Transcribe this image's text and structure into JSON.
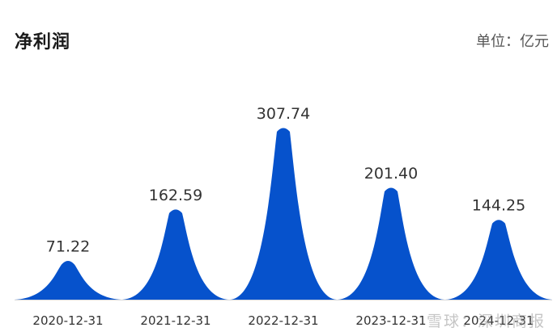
{
  "header": {
    "title": "净利润",
    "unit": "单位：亿元"
  },
  "watermark": "雪球：深圳商报",
  "colors": {
    "peak_fill": "#0652cc"
  },
  "chart_data": {
    "type": "area",
    "title": "净利润",
    "unit": "亿元",
    "categories": [
      "2020-12-31",
      "2021-12-31",
      "2022-12-31",
      "2023-12-31",
      "2024-12-31"
    ],
    "values": [
      71.22,
      162.59,
      307.74,
      201.4,
      144.25
    ],
    "value_labels": [
      "71.22",
      "162.59",
      "307.74",
      "201.40",
      "144.25"
    ],
    "ylim": [
      0,
      307.74
    ],
    "grid": false,
    "legend": "none"
  }
}
